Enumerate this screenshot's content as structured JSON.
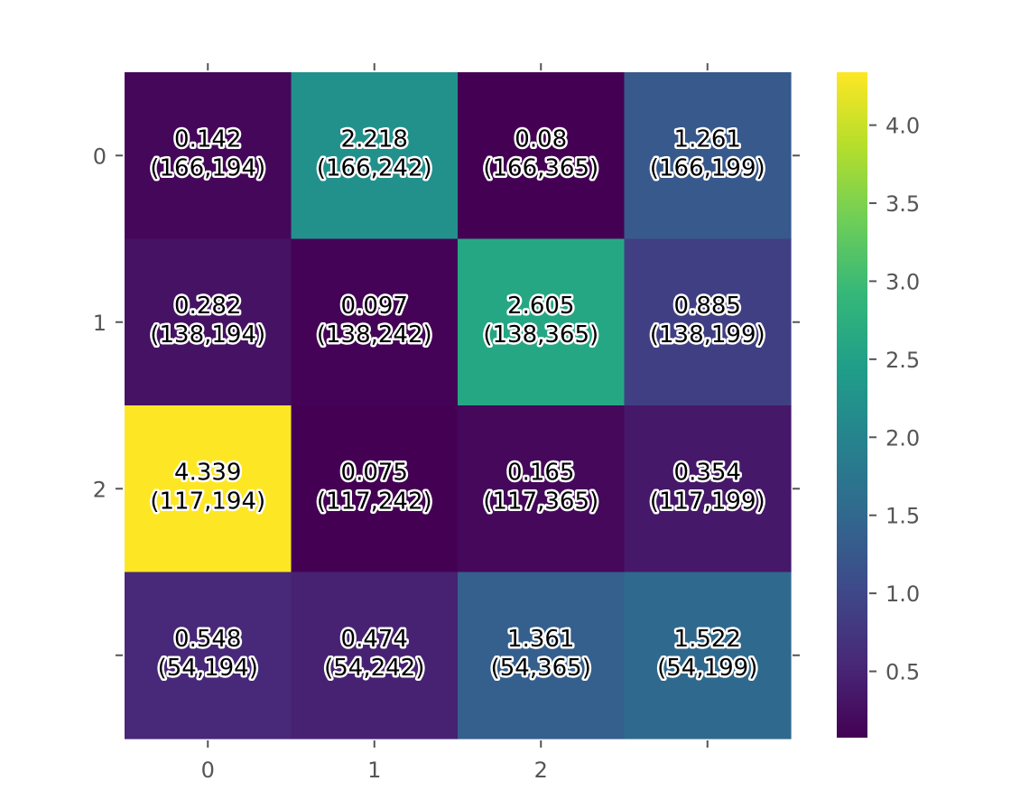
{
  "chart_data": {
    "type": "heatmap",
    "colormap": "viridis",
    "rows": 4,
    "cols": 4,
    "values": [
      [
        0.142,
        2.218,
        0.08,
        1.261
      ],
      [
        0.282,
        0.097,
        2.605,
        0.885
      ],
      [
        4.339,
        0.075,
        0.165,
        0.354
      ],
      [
        0.548,
        0.474,
        1.361,
        1.522
      ]
    ],
    "cell_labels": [
      [
        "0.142",
        "2.218",
        "0.08",
        "1.261"
      ],
      [
        "0.282",
        "0.097",
        "2.605",
        "0.885"
      ],
      [
        "4.339",
        "0.075",
        "0.165",
        "0.354"
      ],
      [
        "0.548",
        "0.474",
        "1.361",
        "1.522"
      ]
    ],
    "cell_coords": [
      [
        "(166,194)",
        "(166,242)",
        "(166,365)",
        "(166,199)"
      ],
      [
        "(138,194)",
        "(138,242)",
        "(138,365)",
        "(138,199)"
      ],
      [
        "(117,194)",
        "(117,242)",
        "(117,365)",
        "(117,199)"
      ],
      [
        "(54,194)",
        "(54,242)",
        "(54,365)",
        "(54,199)"
      ]
    ],
    "x_tick_labels": [
      "0",
      "1",
      "2",
      ""
    ],
    "y_tick_labels": [
      "0",
      "1",
      "2",
      ""
    ],
    "colorbar": {
      "range": [
        0.075,
        4.339
      ],
      "ticks": [
        0.5,
        1.0,
        1.5,
        2.0,
        2.5,
        3.0,
        3.5,
        4.0
      ],
      "tick_labels": [
        "0.5",
        "1.0",
        "1.5",
        "2.0",
        "2.5",
        "3.0",
        "3.5",
        "4.0"
      ]
    },
    "grid": false,
    "title": "",
    "xlabel": "",
    "ylabel": ""
  }
}
